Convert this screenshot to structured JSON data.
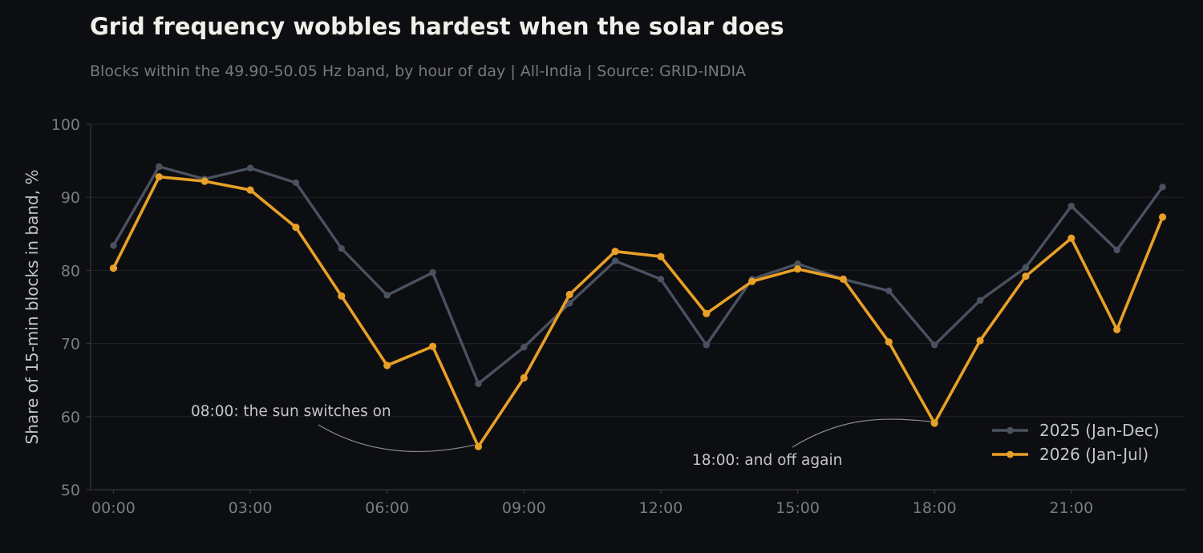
{
  "colors": {
    "background": "#0d0e11",
    "grid": "#1e2025",
    "axis": "#34363c",
    "tick_text": "#7a7c83",
    "label_text": "#c3c5cb",
    "annotation_line": "#8a8c92",
    "series_2025": "#4a5160",
    "series_2026": "#e8a026"
  },
  "chart_data": {
    "type": "line",
    "title": "Grid frequency wobbles hardest when the solar does",
    "subtitle": "Blocks within the 49.90-50.05 Hz band, by hour of day | All-India | Source: GRID-INDIA",
    "xlabel": "",
    "ylabel": "Share of 15-min blocks in band, %",
    "x": [
      0,
      1,
      2,
      3,
      4,
      5,
      6,
      7,
      8,
      9,
      10,
      11,
      12,
      13,
      14,
      15,
      16,
      17,
      18,
      19,
      20,
      21,
      22,
      23
    ],
    "xlim": [
      -0.5,
      23.5
    ],
    "ylim": [
      50,
      100
    ],
    "x_ticks": [
      0,
      3,
      6,
      9,
      12,
      15,
      18,
      21
    ],
    "x_tick_labels": [
      "00:00",
      "03:00",
      "06:00",
      "09:00",
      "12:00",
      "15:00",
      "18:00",
      "21:00"
    ],
    "y_ticks": [
      50,
      60,
      70,
      80,
      90,
      100
    ],
    "y_tick_labels": [
      "50",
      "60",
      "70",
      "80",
      "90",
      "100"
    ],
    "grid": true,
    "legend_position": "bottom-right",
    "series": [
      {
        "name": "2025 (Jan-Dec)",
        "color": "#4a5160",
        "values": [
          83.4,
          94.2,
          92.5,
          94.0,
          92.0,
          83.0,
          76.6,
          79.7,
          64.5,
          69.5,
          75.5,
          81.3,
          78.8,
          69.8,
          78.8,
          80.9,
          78.8,
          77.2,
          69.8,
          75.9,
          80.4,
          88.8,
          82.8,
          91.4
        ]
      },
      {
        "name": "2026 (Jan-Jul)",
        "color": "#e8a026",
        "values": [
          80.3,
          92.8,
          92.2,
          91.0,
          85.9,
          76.5,
          67.0,
          69.6,
          55.9,
          65.3,
          76.7,
          82.6,
          81.9,
          74.1,
          78.5,
          80.2,
          78.8,
          70.2,
          59.1,
          70.4,
          79.2,
          84.4,
          71.9,
          87.3
        ]
      }
    ],
    "annotations": [
      {
        "text": "08:00: the sun switches on",
        "x": 8,
        "y": 55.9
      },
      {
        "text": "18:00: and off again",
        "x": 18,
        "y": 59.1
      }
    ]
  }
}
